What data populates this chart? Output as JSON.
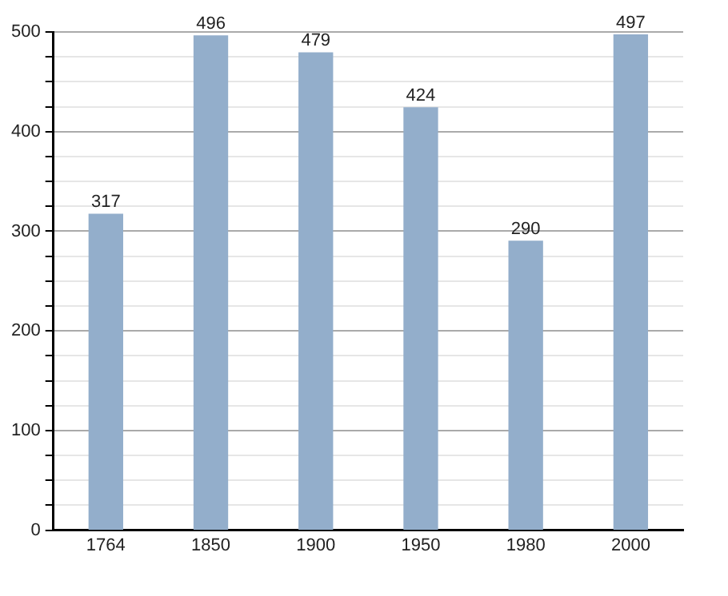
{
  "chart_data": {
    "type": "bar",
    "categories": [
      "1764",
      "1850",
      "1900",
      "1950",
      "1980",
      "2000"
    ],
    "values": [
      317,
      496,
      479,
      424,
      290,
      497
    ],
    "color": "#93aecb",
    "ylim": [
      0,
      500
    ],
    "yticks": [
      0,
      {
        "value": 25,
        "label": null
      },
      {
        "value": 50,
        "label": null
      },
      {
        "value": 75,
        "label": null
      },
      100,
      {
        "value": 125,
        "label": null
      },
      {
        "value": 150,
        "label": null
      },
      {
        "value": 175,
        "label": null
      },
      200,
      {
        "value": 225,
        "label": null
      },
      {
        "value": 250,
        "label": null
      },
      {
        "value": 275,
        "label": null
      },
      300,
      {
        "value": 325,
        "label": null
      },
      {
        "value": 350,
        "label": null
      },
      {
        "value": 375,
        "label": null
      },
      400,
      {
        "value": 425,
        "label": null
      },
      {
        "value": 450,
        "label": null
      },
      {
        "value": 475,
        "label": null
      },
      500
    ],
    "grid": "y",
    "data_labels": true
  }
}
